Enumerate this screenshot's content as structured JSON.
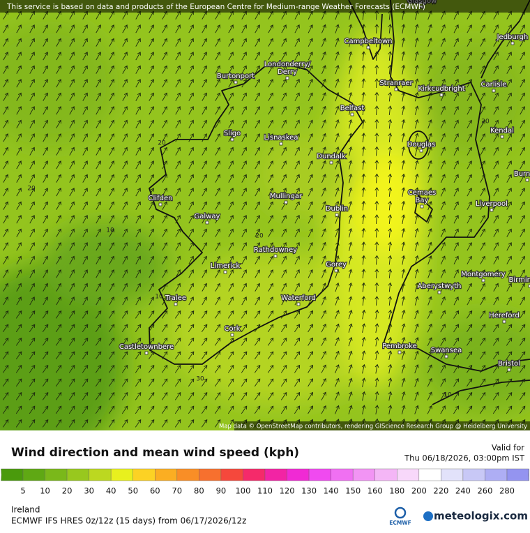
{
  "banner": "This service is based on data and products of the European Centre for Medium-range Weather Forecasts (ECMWF)",
  "attribution": "Map data © OpenStreetMap contributors, rendering GIScience Research Group @ Heidelberg University",
  "places": [
    [
      "Glasgow"
    ],
    [
      "Campbeltown"
    ],
    [
      "Jedburgh"
    ],
    [
      "Londonderry/",
      "Derry"
    ],
    [
      "Burtonport"
    ],
    [
      "Stranraer"
    ],
    [
      "Kirkcudbright"
    ],
    [
      "Carlisle"
    ],
    [
      "Belfast"
    ],
    [
      "Kendal"
    ],
    [
      "Sligo"
    ],
    [
      "Lisnaskea"
    ],
    [
      "Douglas"
    ],
    [
      "Dundalk"
    ],
    [
      "Burnley"
    ],
    [
      "Clifden"
    ],
    [
      "Mullingar"
    ],
    [
      "Cemaes",
      "Bay"
    ],
    [
      "Liverpool"
    ],
    [
      "Dublin"
    ],
    [
      "Galway"
    ],
    [
      "Rathdowney"
    ],
    [
      "Limerick"
    ],
    [
      "Gorey"
    ],
    [
      "Montgomery"
    ],
    [
      "Aberystwyth"
    ],
    [
      "Birmingham"
    ],
    [
      "Tralee"
    ],
    [
      "Waterford"
    ],
    [
      "Hereford"
    ],
    [
      "Cork"
    ],
    [
      "Pembroke"
    ],
    [
      "Castletownbere"
    ],
    [
      "Swansea"
    ],
    [
      "Bristol"
    ]
  ],
  "contour_labels": [
    20,
    20,
    10,
    20,
    10,
    20,
    30,
    10
  ],
  "legend": {
    "title": "Wind direction and mean wind speed (kph)",
    "valid_label": "Valid for",
    "valid_time": "Thu 06/18/2026, 03:00pm IST",
    "ticks": [
      5,
      10,
      20,
      30,
      40,
      50,
      60,
      70,
      80,
      90,
      100,
      110,
      120,
      130,
      140,
      150,
      160,
      180,
      200,
      220,
      240,
      260,
      280
    ],
    "colors": [
      "#4a9a0c",
      "#5fa814",
      "#7ab81a",
      "#98c81e",
      "#bcd820",
      "#e8f01e",
      "#fcd224",
      "#fbae22",
      "#f98e26",
      "#f7702e",
      "#f5483c",
      "#f52a6a",
      "#f224a4",
      "#f02ad4",
      "#f04af0",
      "#f070f2",
      "#f294f4",
      "#f4b6f6",
      "#f8d8fa",
      "#ffffff",
      "#e2e2fa",
      "#c8c8f6",
      "#aeaef4",
      "#9494f0",
      "#7c7cec"
    ]
  },
  "footer": {
    "region": "Ireland",
    "model": "ECMWF IFS HRES 0z/12z (15 days) from 06/17/2026/12z",
    "ecmwf_logo": "ECMWF",
    "brand": "meteologix.com"
  }
}
